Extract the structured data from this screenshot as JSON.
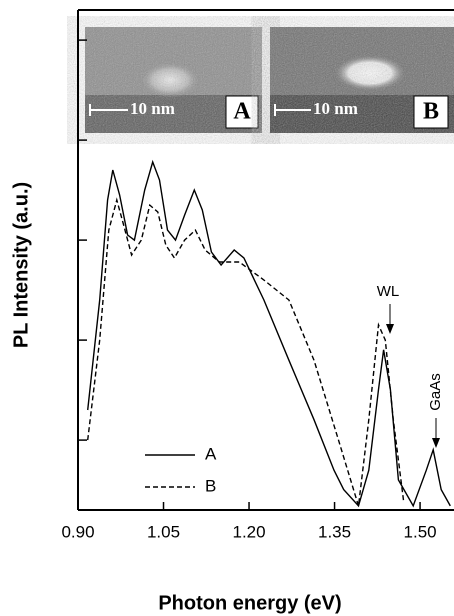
{
  "chart_data": {
    "type": "line",
    "x_label": "Photon energy (eV)",
    "y_label": "PL Intensity (a.u.)",
    "xlim": [
      0.9,
      1.556
    ],
    "xticks": [
      {
        "value": 0.9,
        "label": "0.90"
      },
      1.05,
      {
        "value": 1.2,
        "label": "1.20"
      },
      1.35,
      {
        "value": 1.5,
        "label": "1.50"
      }
    ],
    "ylim": [
      2,
      200000
    ],
    "yticks": [
      10,
      100,
      1000,
      10000,
      100000
    ],
    "log_scale": true,
    "legend": "lower left",
    "series": [
      {
        "name": "A",
        "color": "#000000",
        "dash": "solid",
        "x": [
          0.917,
          0.938,
          0.952,
          0.961,
          0.973,
          0.987,
          0.999,
          1.017,
          1.031,
          1.043,
          1.057,
          1.071,
          1.087,
          1.104,
          1.118,
          1.134,
          1.151,
          1.174,
          1.191,
          1.226,
          1.27,
          1.314,
          1.349,
          1.366,
          1.392,
          1.41,
          1.427,
          1.436,
          1.448,
          1.462,
          1.488,
          1.511,
          1.523,
          1.537,
          1.553
        ],
        "values": [
          20,
          252,
          2520,
          5020,
          2830,
          1125,
          1000,
          3170,
          6040,
          3990,
          1260,
          1000,
          1780,
          3170,
          2000,
          760,
          564,
          796,
          662,
          252,
          63,
          16,
          5,
          3.2,
          2.2,
          5,
          32,
          80,
          32,
          4,
          2.2,
          5,
          8,
          3.2,
          2.2
        ]
      },
      {
        "name": "B",
        "color": "#000000",
        "dash": "dashed",
        "x": [
          0.917,
          0.938,
          0.954,
          0.968,
          0.98,
          0.994,
          1.011,
          1.026,
          1.04,
          1.054,
          1.069,
          1.087,
          1.106,
          1.123,
          1.148,
          1.183,
          1.226,
          1.27,
          1.314,
          1.357,
          1.392,
          1.41,
          1.427,
          1.439,
          1.453,
          1.471
        ],
        "values": [
          10,
          100,
          1260,
          2520,
          1420,
          710,
          1000,
          2240,
          1910,
          893,
          662,
          1000,
          1260,
          796,
          604,
          604,
          399,
          252,
          63,
          10,
          2.2,
          16,
          142,
          100,
          16,
          2.5
        ]
      }
    ],
    "annotations": [
      "WL",
      "GaAs"
    ],
    "insets": [
      {
        "scale_bar": "10 nm",
        "label": "A"
      },
      {
        "scale_bar": "10 nm",
        "label": "B"
      }
    ]
  }
}
